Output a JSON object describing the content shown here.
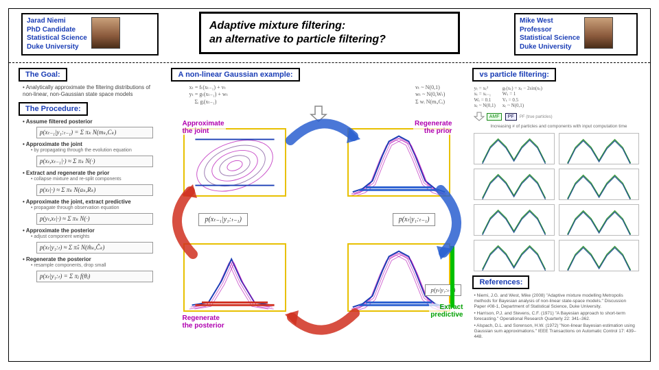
{
  "title_line1": "Adaptive mixture filtering:",
  "title_line2": "   an alternative to particle filtering?",
  "author_left": {
    "name": "Jarad Niemi",
    "role": "PhD Candidate",
    "dept": "Statistical Science",
    "inst": "Duke University"
  },
  "author_right": {
    "name": "Mike West",
    "role": "Professor",
    "dept": "Statistical Science",
    "inst": "Duke University"
  },
  "labels": {
    "goal": "The Goal:",
    "procedure": "The Procedure:",
    "example": "A non-linear Gaussian example:",
    "vs": "vs particle filtering:",
    "refs": "References:"
  },
  "goal_text": "• Analytically approximate the filtering distributions of non-linear, non-Gaussian state space models",
  "procedure": [
    {
      "h": "• Assume filtered posterior",
      "eq": "p(xₜ₋₁|y₁:ₜ₋₁) = Σ πₖ N(mₖ,Cₖ)"
    },
    {
      "h": "• Approximate the joint",
      "s": "by propagating through the evolution equation",
      "eq": "p(xₜ,xₜ₋₁|·) ≈ Σ πₖ N(·)"
    },
    {
      "h": "• Extract and regenerate the prior",
      "s": "collapse mixture and re-split components",
      "eq": "p(xₜ|·) ≈ Σ πₖ N(aₖ,Rₖ)"
    },
    {
      "h": "• Approximate the joint, extract predictive",
      "s": "propagate through observation equation",
      "eq": "p(yₜ,xₜ|·) ≈ Σ πₖ N(·)"
    },
    {
      "h": "• Approximate the posterior",
      "s": "adjust component weights",
      "eq": "p(xₜ|y₁:ₜ) ≈ Σ π̂ₖ N(m̂ₖ,Ĉₖ)"
    },
    {
      "h": "• Regenerate the posterior",
      "s": "resample components, drop small",
      "eq": "p(xₜ|y₁:ₜ) = Σ πⱼ f(θⱼ)"
    }
  ],
  "mid_eq_left": "xₜ = fₜ(xₜ₋₁) + vₜ\nyₜ = gₜ(xₜ₋₁) + wₜ\n    Σᵢ gᵢ(xₜ₋₁)",
  "mid_eq_right": "vₜ ~ N(0,1)\nwₜ ~ N(0,Wₜ)\nΣ wᵢ N(mᵢ,Cᵢ)",
  "panel_labels": {
    "tl": "Approximate\nthe joint",
    "tr": "Regenerate\nthe prior",
    "bl": "Regenerate\nthe posterior",
    "br": "Extract\npredictive"
  },
  "mini_eq_left": "p(xₜ₋₁|y₁:ₜ₋₁)",
  "mini_eq_right": "p(xₜ|y₁:ₜ₋₁)",
  "mini_eq_br": "p(yₜ|y₁:ₜ₋₁)",
  "vs_eq_left": "yₜ = xₜ²\nxₜ = xₜ₋₁\nWₜ = 0.1\nxₜ ~ N(0,1)",
  "vs_eq_right": "gₜ(xₜ) = xₜ − 2sin(xₜ)\nWₜ = 1\nVₜ = 0.5\nxₜ ~ N(0,1)",
  "vs_tags": {
    "t1": "AMF",
    "t2": "PF",
    "t3": "PF (true particles)"
  },
  "vs_note": "Increasing # of particles and components with input computation time",
  "refs": [
    "Niemi, J.G. and West, Mike (2008) \"Adaptive mixture modelling Metropolis methods for Bayesian analysis of non-linear state-space models.\" Discussion Paper #08-1, Department of Statistical Science, Duke University.",
    "Harrison, P.J. and Stevens, C.F. (1971) \"A Bayesian approach to short-term forecasting.\" Operational Research Quarterly 22: 341–362.",
    "Alspach, D.L. and Sorenson, H.W. (1972) \"Non-linear Bayesian estimation using Gaussian sum approximations.\" IEEE Transactions on Automatic Control 17: 439–448."
  ],
  "colors": {
    "blue": "#1a3db5",
    "magenta": "#b000b0",
    "green": "#00a000",
    "arrow_blue": "#2a5fd0",
    "arrow_red": "#d03020",
    "panel_border": "#e8c000"
  },
  "curves": {
    "bell": [
      [
        5,
        95
      ],
      [
        20,
        90
      ],
      [
        35,
        78
      ],
      [
        50,
        40
      ],
      [
        60,
        18
      ],
      [
        75,
        10
      ],
      [
        90,
        18
      ],
      [
        100,
        40
      ],
      [
        115,
        78
      ],
      [
        130,
        90
      ],
      [
        145,
        95
      ]
    ],
    "joint": [
      [
        10,
        90
      ],
      [
        40,
        60
      ],
      [
        70,
        30
      ],
      [
        100,
        60
      ],
      [
        130,
        90
      ]
    ],
    "post": [
      [
        10,
        92
      ],
      [
        35,
        88
      ],
      [
        55,
        55
      ],
      [
        70,
        22
      ],
      [
        85,
        55
      ],
      [
        105,
        88
      ],
      [
        130,
        92
      ]
    ],
    "bimodal": [
      [
        6,
        44
      ],
      [
        18,
        20
      ],
      [
        30,
        8
      ],
      [
        42,
        20
      ],
      [
        54,
        40
      ],
      [
        66,
        20
      ],
      [
        78,
        8
      ],
      [
        90,
        20
      ],
      [
        102,
        44
      ]
    ]
  }
}
